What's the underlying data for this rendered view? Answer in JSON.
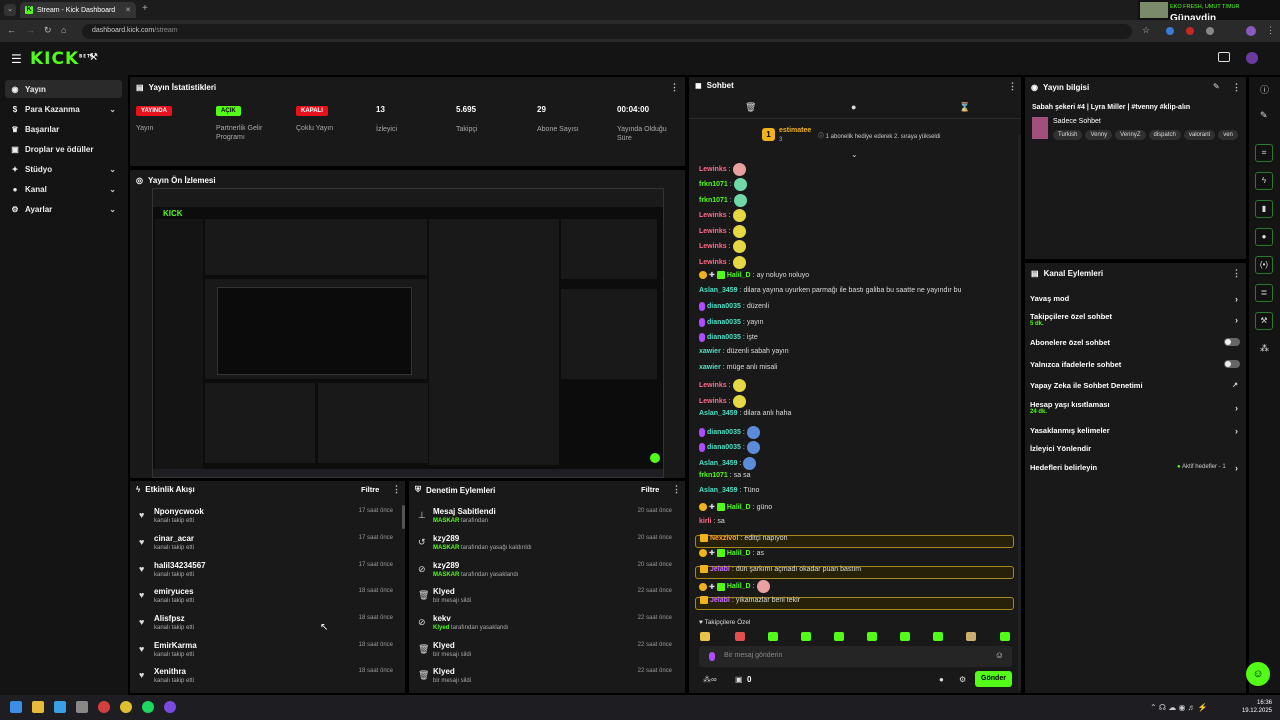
{
  "browser": {
    "tab_title": "Stream - Kick Dashboard",
    "url_host": "dashboard.kick.com",
    "url_path": "/stream",
    "media_artist": "EKO FRESH, UMUT TIMUR",
    "media_title": "Günaydin"
  },
  "brand": {
    "logo": "KICK",
    "logo_sup": "BETA",
    "accent": "#53fc18"
  },
  "sidebar": {
    "items": [
      {
        "label": "Yayın",
        "icon": "signal-icon"
      },
      {
        "label": "Para Kazanma",
        "icon": "money-icon"
      },
      {
        "label": "Başarılar",
        "icon": "trophy-icon"
      },
      {
        "label": "Droplar ve ödüller",
        "icon": "gift-icon"
      },
      {
        "label": "Stüdyo",
        "icon": "studio-icon"
      },
      {
        "label": "Kanal",
        "icon": "user-icon"
      },
      {
        "label": "Ayarlar",
        "icon": "gear-icon"
      }
    ]
  },
  "stats": {
    "title": "Yayın İstatistikleri",
    "items": [
      {
        "value": "YAYINDA",
        "label": "Yayın"
      },
      {
        "value": "AÇIK",
        "label": "Partnerlik Gelir Programı"
      },
      {
        "value": "KAPALI",
        "label": "Çoklu Yayın"
      },
      {
        "value": "13",
        "label": "İzleyici"
      },
      {
        "value": "5.695",
        "label": "Takipçi"
      },
      {
        "value": "29",
        "label": "Abone Sayısı"
      },
      {
        "value": "00:04:00",
        "label": "Yayında Olduğu Süre"
      }
    ]
  },
  "preview": {
    "title": "Yayın Ön İzlemesi"
  },
  "feed": {
    "title": "Etkinlik Akışı",
    "filter": "Filtre",
    "rows": [
      {
        "name": "Nponycwook",
        "sub": "kanalı takip etti",
        "time": "17 saat önce"
      },
      {
        "name": "cinar_acar",
        "sub": "kanalı takip etti",
        "time": "17 saat önce"
      },
      {
        "name": "halil34234567",
        "sub": "kanalı takip etti",
        "time": "17 saat önce"
      },
      {
        "name": "emiryuces",
        "sub": "kanalı takip etti",
        "time": "18 saat önce"
      },
      {
        "name": "Alisfpsz",
        "sub": "kanalı takip etti",
        "time": "18 saat önce"
      },
      {
        "name": "EmirKarma",
        "sub": "kanalı takip etti",
        "time": "18 saat önce"
      },
      {
        "name": "Xenithra",
        "sub": "kanalı takip etti",
        "time": "18 saat önce"
      }
    ]
  },
  "mod": {
    "title": "Denetim Eylemleri",
    "filter": "Filtre",
    "rows": [
      {
        "icon": "pin-icon",
        "name": "Mesaj Sabitlendi",
        "actor": "MASKAR",
        "sub": "tarafından",
        "time": "20 saat önce"
      },
      {
        "icon": "undo-icon",
        "name": "kzy289",
        "actor": "MASKAR",
        "sub": "tarafından yasağı kaldırıldı",
        "time": "20 saat önce"
      },
      {
        "icon": "ban-icon",
        "name": "kzy289",
        "actor": "MASKAR",
        "sub": "tarafından yasaklandı",
        "time": "20 saat önce"
      },
      {
        "icon": "trash-icon",
        "name": "Klyed",
        "actor": "",
        "sub": "bir mesajı sildi",
        "time": "22 saat önce"
      },
      {
        "icon": "ban-icon",
        "name": "kekv",
        "actor": "Klyed",
        "sub": "tarafından yasaklandı",
        "time": "22 saat önce"
      },
      {
        "icon": "trash-icon",
        "name": "Klyed",
        "actor": "",
        "sub": "bir mesajı sildi",
        "time": "22 saat önce"
      },
      {
        "icon": "trash-icon",
        "name": "Klyed",
        "actor": "",
        "sub": "bir mesajı sildi",
        "time": "22 saat önce"
      }
    ]
  },
  "chat": {
    "title": "Sohbet",
    "gift_user": "estimatee",
    "gift_count": "3",
    "gift_text": "1 abonelik hediye ederek 2. sıraya yükseldi",
    "messages": [
      {
        "user": "Lewinks",
        "cls": "u-red",
        "text": "",
        "emote": "p"
      },
      {
        "user": "frkn1071",
        "cls": "u-green",
        "text": "",
        "emote": "g"
      },
      {
        "user": "frkn1071",
        "cls": "u-green",
        "text": "",
        "emote": "g"
      },
      {
        "user": "Lewinks",
        "cls": "u-red",
        "text": "",
        "emote": "y"
      },
      {
        "user": "Lewinks",
        "cls": "u-red",
        "text": "",
        "emote": "y"
      },
      {
        "user": "Lewinks",
        "cls": "u-red",
        "text": "",
        "emote": "y"
      },
      {
        "user": "Lewinks",
        "cls": "u-red",
        "text": "",
        "emote": "y"
      },
      {
        "user": "Halil_D",
        "cls": "u-green",
        "text": "ay noluyo noluyo",
        "emote": "",
        "badges": true
      },
      {
        "user": "Aslan_3459",
        "cls": "u-teal",
        "text": "dilara yayına uyurken parmağı ile bastı galiba bu saatte ne yayındır bu",
        "emote": ""
      },
      {
        "user": "diana0035",
        "cls": "u-teal",
        "text": "düzenli",
        "emote": "",
        "mic": true
      },
      {
        "user": "diana0035",
        "cls": "u-teal",
        "text": "yayın",
        "emote": "",
        "mic": true
      },
      {
        "user": "diana0035",
        "cls": "u-teal",
        "text": "işte",
        "emote": "",
        "mic": true
      },
      {
        "user": "xawier",
        "cls": "u-teal",
        "text": "düzenli sabah yayın",
        "emote": ""
      },
      {
        "user": "xawier",
        "cls": "u-teal",
        "text": "müge anlı misali",
        "emote": ""
      },
      {
        "user": "Lewinks",
        "cls": "u-red",
        "text": "",
        "emote": "y"
      },
      {
        "user": "Lewinks",
        "cls": "u-red",
        "text": "",
        "emote": "y"
      },
      {
        "user": "Aslan_3459",
        "cls": "u-teal",
        "text": "dilara anlı haha",
        "emote": ""
      },
      {
        "user": "diana0035",
        "cls": "u-teal",
        "text": "",
        "emote": "b",
        "mic": true
      },
      {
        "user": "diana0035",
        "cls": "u-teal",
        "text": "",
        "emote": "b",
        "mic": true
      },
      {
        "user": "Aslan_3459",
        "cls": "u-teal",
        "text": "",
        "emote": "b"
      },
      {
        "user": "frkn1071",
        "cls": "u-green",
        "text": "sa sa",
        "emote": ""
      },
      {
        "user": "Aslan_3459",
        "cls": "u-teal",
        "text": "Tüno",
        "emote": ""
      },
      {
        "user": "Halil_D",
        "cls": "u-green",
        "text": "güno",
        "emote": "",
        "badges": true
      },
      {
        "user": "kirli",
        "cls": "u-red",
        "text": "sa",
        "emote": ""
      },
      {
        "user": "Nexzivol",
        "cls": "u-orange",
        "text": "editçi napıyon",
        "emote": "",
        "hl": true
      },
      {
        "user": "Halil_D",
        "cls": "u-green",
        "text": "as",
        "emote": "",
        "badges": true
      },
      {
        "user": "Jelabi",
        "cls": "u-purple",
        "text": "dün şarkımı açmadı okadar puan bastım",
        "emote": "",
        "hl": true
      },
      {
        "user": "Halil_D",
        "cls": "u-green",
        "text": "",
        "emote": "p",
        "badges": true
      },
      {
        "user": "Jelabi",
        "cls": "u-purple",
        "text": "yıkamazlar beni tekir",
        "emote": "",
        "hl": true
      }
    ],
    "followers_only": "Takipçilere Özel",
    "input_placeholder": "Bir mesaj gönderin",
    "points": "0",
    "send_label": "Gönder"
  },
  "stream_info": {
    "title": "Yayın bilgisi",
    "stream_title": "Sabah şekeri #4 | Lyra Miller | #tvenny #klip-alın",
    "category": "Sadece Sohbet",
    "tags": [
      "Turkish",
      "Venny",
      "VennyZ",
      "dispatch",
      "valorant",
      "ven"
    ]
  },
  "channel_actions": {
    "title": "Kanal Eylemleri",
    "rows": [
      {
        "label": "Yavaş mod",
        "sub": "",
        "control": "chevron"
      },
      {
        "label": "Takipçilere özel sohbet",
        "sub": "5 dk.",
        "control": "chevron"
      },
      {
        "label": "Abonelere özel sohbet",
        "sub": "",
        "control": "toggle"
      },
      {
        "label": "Yalnızca ifadelerle sohbet",
        "sub": "",
        "control": "toggle"
      },
      {
        "label": "Yapay Zeka ile Sohbet Denetimi",
        "sub": "",
        "control": "external"
      },
      {
        "label": "Hesap yaşı kısıtlaması",
        "sub": "24 dk.",
        "control": "chevron"
      },
      {
        "label": "Yasaklanmış kelimeler",
        "sub": "",
        "control": "chevron"
      },
      {
        "label": "İzleyici Yönlendir",
        "sub": "",
        "control": "none"
      },
      {
        "label": "Hedefleri belirleyin",
        "sub": "",
        "control": "goal",
        "extra": "Aktif hedefler - 1"
      }
    ]
  },
  "taskbar": {
    "time": "16:36",
    "date": "19.12.2025"
  }
}
